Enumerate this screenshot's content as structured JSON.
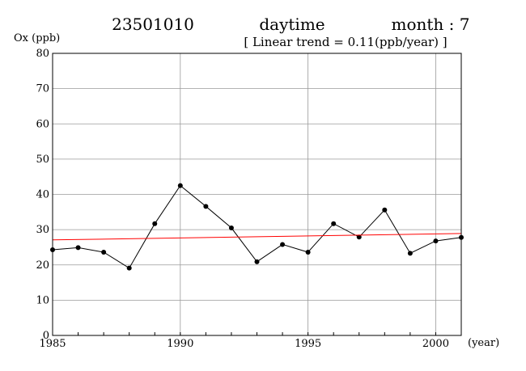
{
  "header": {
    "station": "23501010",
    "period": "daytime",
    "month": "month : 7",
    "trend": "[ Linear trend = 0.11(ppb/year) ]"
  },
  "chart_data": {
    "type": "line",
    "ylabel": "Ox (ppb)",
    "xlabel": "(year)",
    "xlim": [
      1985,
      2001
    ],
    "ylim": [
      0,
      80
    ],
    "x_ticks": [
      1985,
      1990,
      1995,
      2000
    ],
    "y_ticks": [
      0,
      10,
      20,
      30,
      40,
      50,
      60,
      70,
      80
    ],
    "grid": true,
    "series": [
      {
        "type": "line+markers",
        "color": "#000000",
        "x": [
          1985,
          1986,
          1987,
          1988,
          1989,
          1990,
          1991,
          1992,
          1993,
          1994,
          1995,
          1996,
          1997,
          1998,
          1999,
          2000,
          2001
        ],
        "y": [
          24.3,
          24.9,
          23.6,
          19.1,
          31.7,
          42.5,
          36.6,
          30.5,
          20.9,
          25.8,
          23.6,
          31.7,
          27.9,
          35.6,
          23.3,
          26.8,
          27.8
        ]
      },
      {
        "type": "trend",
        "color": "#ff0000",
        "x": [
          1985,
          2001
        ],
        "y": [
          27.1,
          28.9
        ]
      }
    ]
  }
}
